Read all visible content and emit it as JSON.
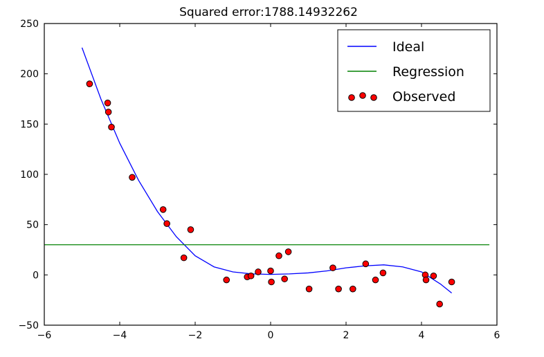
{
  "chart_data": {
    "type": "scatter",
    "title": "Squared error:1788.14932262",
    "xlabel": "",
    "ylabel": "",
    "xlim": [
      -6,
      6
    ],
    "ylim": [
      -50,
      250
    ],
    "xticks": [
      -6,
      -4,
      -2,
      0,
      2,
      4,
      6
    ],
    "yticks": [
      -50,
      0,
      50,
      100,
      150,
      200,
      250
    ],
    "x_tick_labels": [
      "−6",
      "−4",
      "−2",
      "0",
      "2",
      "4",
      "6"
    ],
    "y_tick_labels": [
      "−50",
      "0",
      "50",
      "100",
      "150",
      "200",
      "250"
    ],
    "grid": false,
    "legend_position": "top-right",
    "series": [
      {
        "name": "Ideal",
        "kind": "line",
        "color": "#0000ff",
        "x": [
          -5.0,
          -4.5,
          -4.0,
          -3.5,
          -3.0,
          -2.5,
          -2.0,
          -1.5,
          -1.0,
          -0.5,
          0.0,
          0.5,
          1.0,
          1.5,
          2.0,
          2.5,
          3.0,
          3.5,
          4.0,
          4.5,
          4.8
        ],
        "y": [
          226,
          175,
          131,
          94,
          63,
          38,
          19,
          8,
          3,
          1,
          0.5,
          1,
          2,
          4,
          7,
          9,
          10,
          8,
          3,
          -9,
          -18
        ]
      },
      {
        "name": "Regression",
        "kind": "line",
        "color": "#008000",
        "x": [
          -6,
          5.8
        ],
        "y": [
          30,
          30
        ]
      },
      {
        "name": "Observed",
        "kind": "scatter",
        "color": "#ff0000",
        "x": [
          -4.8,
          -4.32,
          -4.3,
          -4.22,
          -3.67,
          -2.85,
          -2.75,
          -2.3,
          -2.12,
          -1.17,
          -0.62,
          -0.52,
          -0.33,
          0.0,
          0.02,
          0.22,
          0.37,
          0.47,
          1.02,
          1.65,
          1.8,
          2.18,
          2.52,
          2.78,
          2.98,
          4.1,
          4.12,
          4.32,
          4.48,
          4.8
        ],
        "y": [
          190,
          171,
          162,
          147,
          97,
          65,
          51,
          17,
          45,
          -5,
          -2,
          -1,
          3,
          4,
          -7,
          19,
          -4,
          23,
          -14,
          7,
          -14,
          -14,
          11,
          -5,
          2,
          0,
          -5,
          -1,
          -29,
          -7
        ]
      }
    ]
  }
}
